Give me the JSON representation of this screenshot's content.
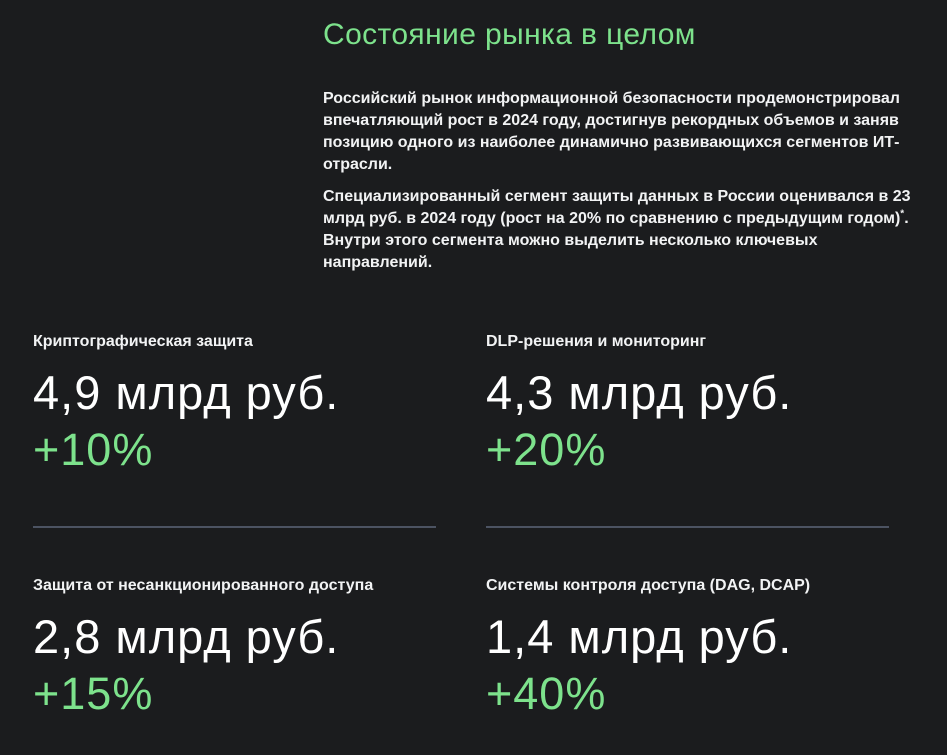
{
  "page": {
    "title": "Состояние рынка в целом"
  },
  "intro": {
    "paragraph1": "Российский рынок информационной безопасности продемонстриро­вал впечатляющий рост в 2024 году, достигнув рекордных объемов и заняв позицию одного из наиболее динамично развивающихся сегментов ИТ-отрасли.",
    "paragraph2_before": "Специализированный сегмент защиты данных в России оценивался в 23 млрд руб. в 2024 году (рост на 20% по сравнению с предыдущим годом)",
    "footnote_marker": "*",
    "paragraph2_after": ". Внутри этого сегмента можно выделить несколько ключевых направлений."
  },
  "stats": {
    "items": [
      {
        "label": "Криптографическая защита",
        "value": "4,9 млрд руб.",
        "growth": "+10%"
      },
      {
        "label": "DLP-решения и мониторинг",
        "value": "4,3 млрд руб.",
        "growth": "+20%"
      },
      {
        "label": "Защита от несанкционированного доступа",
        "value": "2,8 млрд руб.",
        "growth": "+15%"
      },
      {
        "label": "Системы контроля доступа (DAG, DCAP)",
        "value": "1,4 млрд руб.",
        "growth": "+40%"
      }
    ]
  },
  "colors": {
    "background": "#1b1c1e",
    "accent_green": "#7de28c",
    "text": "#f2f3f4",
    "divider": "#4c5362"
  }
}
